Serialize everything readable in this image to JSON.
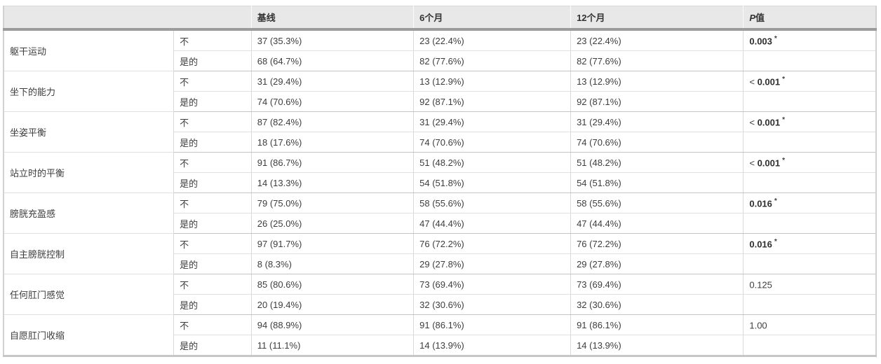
{
  "colors": {
    "header_bg": "#e8e8e8",
    "thick_header_border": "#9c9c9c",
    "grid_line": "#d9d9d9",
    "group_line": "#c4c4c4",
    "text": "#3d3d3d"
  },
  "header": {
    "empty": "",
    "baseline": "基线",
    "m6": "6个月",
    "m12": "12个月",
    "p_italic": "P",
    "p_rest": "值"
  },
  "chart_data": {
    "type": "table",
    "columns": [
      "",
      "",
      "基线",
      "6个月",
      "12个月",
      "P值"
    ],
    "groups": [
      {
        "category": "躯干运动",
        "rows": [
          {
            "answer": "不",
            "baseline": "37 (35.3%)",
            "m6": "23 (22.4%)",
            "m12": "23 (22.4%)",
            "p_prefix": "",
            "p_value": "0.003",
            "p_star": "*"
          },
          {
            "answer": "是的",
            "baseline": "68 (64.7%)",
            "m6": "82 (77.6%)",
            "m12": "82 (77.6%)"
          }
        ]
      },
      {
        "category": "坐下的能力",
        "rows": [
          {
            "answer": "不",
            "baseline": "31 (29.4%)",
            "m6": "13 (12.9%)",
            "m12": "13 (12.9%)",
            "p_prefix": "< ",
            "p_value": "0.001",
            "p_star": "*"
          },
          {
            "answer": "是的",
            "baseline": "74 (70.6%)",
            "m6": "92 (87.1%)",
            "m12": "92 (87.1%)"
          }
        ]
      },
      {
        "category": "坐姿平衡",
        "rows": [
          {
            "answer": "不",
            "baseline": "87 (82.4%)",
            "m6": "31 (29.4%)",
            "m12": "31 (29.4%)",
            "p_prefix": "< ",
            "p_value": "0.001",
            "p_star": "*"
          },
          {
            "answer": "是的",
            "baseline": "18 (17.6%)",
            "m6": "74 (70.6%)",
            "m12": "74 (70.6%)"
          }
        ]
      },
      {
        "category": "站立时的平衡",
        "rows": [
          {
            "answer": "不",
            "baseline": "91 (86.7%)",
            "m6": "51 (48.2%)",
            "m12": "51 (48.2%)",
            "p_prefix": "< ",
            "p_value": "0.001",
            "p_star": "*"
          },
          {
            "answer": "是的",
            "baseline": "14 (13.3%)",
            "m6": "54 (51.8%)",
            "m12": "54 (51.8%)"
          }
        ]
      },
      {
        "category": "膀胱充盈感",
        "rows": [
          {
            "answer": "不",
            "baseline": "79 (75.0%)",
            "m6": "58 (55.6%)",
            "m12": "58 (55.6%)",
            "p_prefix": "",
            "p_value": "0.016",
            "p_star": "*"
          },
          {
            "answer": "是的",
            "baseline": "26 (25.0%)",
            "m6": "47 (44.4%)",
            "m12": "47 (44.4%)"
          }
        ]
      },
      {
        "category": "自主膀胱控制",
        "rows": [
          {
            "answer": "不",
            "baseline": "97 (91.7%)",
            "m6": "76 (72.2%)",
            "m12": "76 (72.2%)",
            "p_prefix": "",
            "p_value": "0.016",
            "p_star": "*"
          },
          {
            "answer": "是的",
            "baseline": "8 (8.3%)",
            "m6": "29 (27.8%)",
            "m12": "29 (27.8%)"
          }
        ]
      },
      {
        "category": "任何肛门感觉",
        "rows": [
          {
            "answer": "不",
            "baseline": "85 (80.6%)",
            "m6": "73 (69.4%)",
            "m12": "73 (69.4%)",
            "p_prefix": "",
            "p_value": "0.125",
            "p_star": ""
          },
          {
            "answer": "是的",
            "baseline": "20 (19.4%)",
            "m6": "32 (30.6%)",
            "m12": "32 (30.6%)"
          }
        ]
      },
      {
        "category": "自愿肛门收缩",
        "rows": [
          {
            "answer": "不",
            "baseline": "94 (88.9%)",
            "m6": "91 (86.1%)",
            "m12": "91 (86.1%)",
            "p_prefix": "",
            "p_value": "1.00",
            "p_star": ""
          },
          {
            "answer": "是的",
            "baseline": "11 (11.1%)",
            "m6": "14 (13.9%)",
            "m12": "14 (13.9%)"
          }
        ]
      }
    ]
  }
}
